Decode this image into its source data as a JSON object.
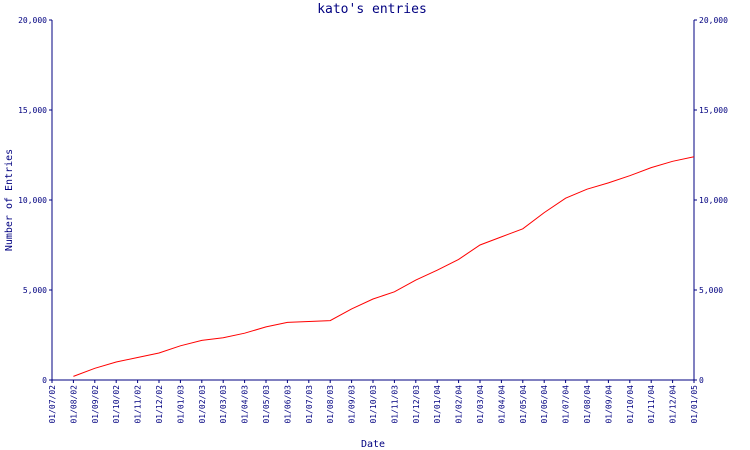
{
  "colors": {
    "axis": "#000080",
    "text": "#000080",
    "series": "#ff0000",
    "background": "#ffffff"
  },
  "chart_data": {
    "type": "line",
    "title": "kato's entries",
    "xlabel": "Date",
    "ylabel": "Number of Entries",
    "ylim": [
      0,
      20000
    ],
    "y_ticks": [
      0,
      5000,
      10000,
      15000,
      20000
    ],
    "y_tick_labels": [
      "0",
      "5,000",
      "10,000",
      "15,000",
      "20,000"
    ],
    "right_axis": true,
    "grid": false,
    "x_tick_labels": [
      "01/07/02",
      "01/08/02",
      "01/09/02",
      "01/10/02",
      "01/11/02",
      "01/12/02",
      "01/01/03",
      "01/02/03",
      "01/03/03",
      "01/04/03",
      "01/05/03",
      "01/06/03",
      "01/07/03",
      "01/08/03",
      "01/09/03",
      "01/10/03",
      "01/11/03",
      "01/12/03",
      "01/01/04",
      "01/02/04",
      "01/03/04",
      "01/04/04",
      "01/05/04",
      "01/06/04",
      "01/07/04",
      "01/08/04",
      "01/09/04",
      "01/10/04",
      "01/11/04",
      "01/12/04",
      "01/01/05"
    ],
    "series": [
      {
        "x": [
          "01/08/02",
          "01/09/02",
          "01/10/02",
          "01/11/02",
          "01/12/02",
          "01/01/03",
          "01/02/03",
          "01/03/03",
          "01/04/03",
          "01/05/03",
          "01/06/03",
          "01/07/03",
          "01/08/03",
          "01/09/03",
          "01/10/03",
          "01/11/03",
          "01/12/03",
          "01/01/04",
          "01/02/04",
          "01/03/04",
          "01/04/04",
          "01/05/04",
          "01/06/04",
          "01/07/04",
          "01/08/04",
          "01/09/04",
          "01/10/04",
          "01/11/04",
          "01/12/04",
          "01/01/05"
        ],
        "values": [
          200,
          650,
          1000,
          1250,
          1500,
          1900,
          2200,
          2350,
          2600,
          2950,
          3200,
          3250,
          3300,
          3950,
          4500,
          4900,
          5550,
          6100,
          6700,
          7500,
          7950,
          8400,
          9300,
          10100,
          10600,
          10950,
          11350,
          11800,
          12150,
          12400
        ]
      }
    ]
  }
}
